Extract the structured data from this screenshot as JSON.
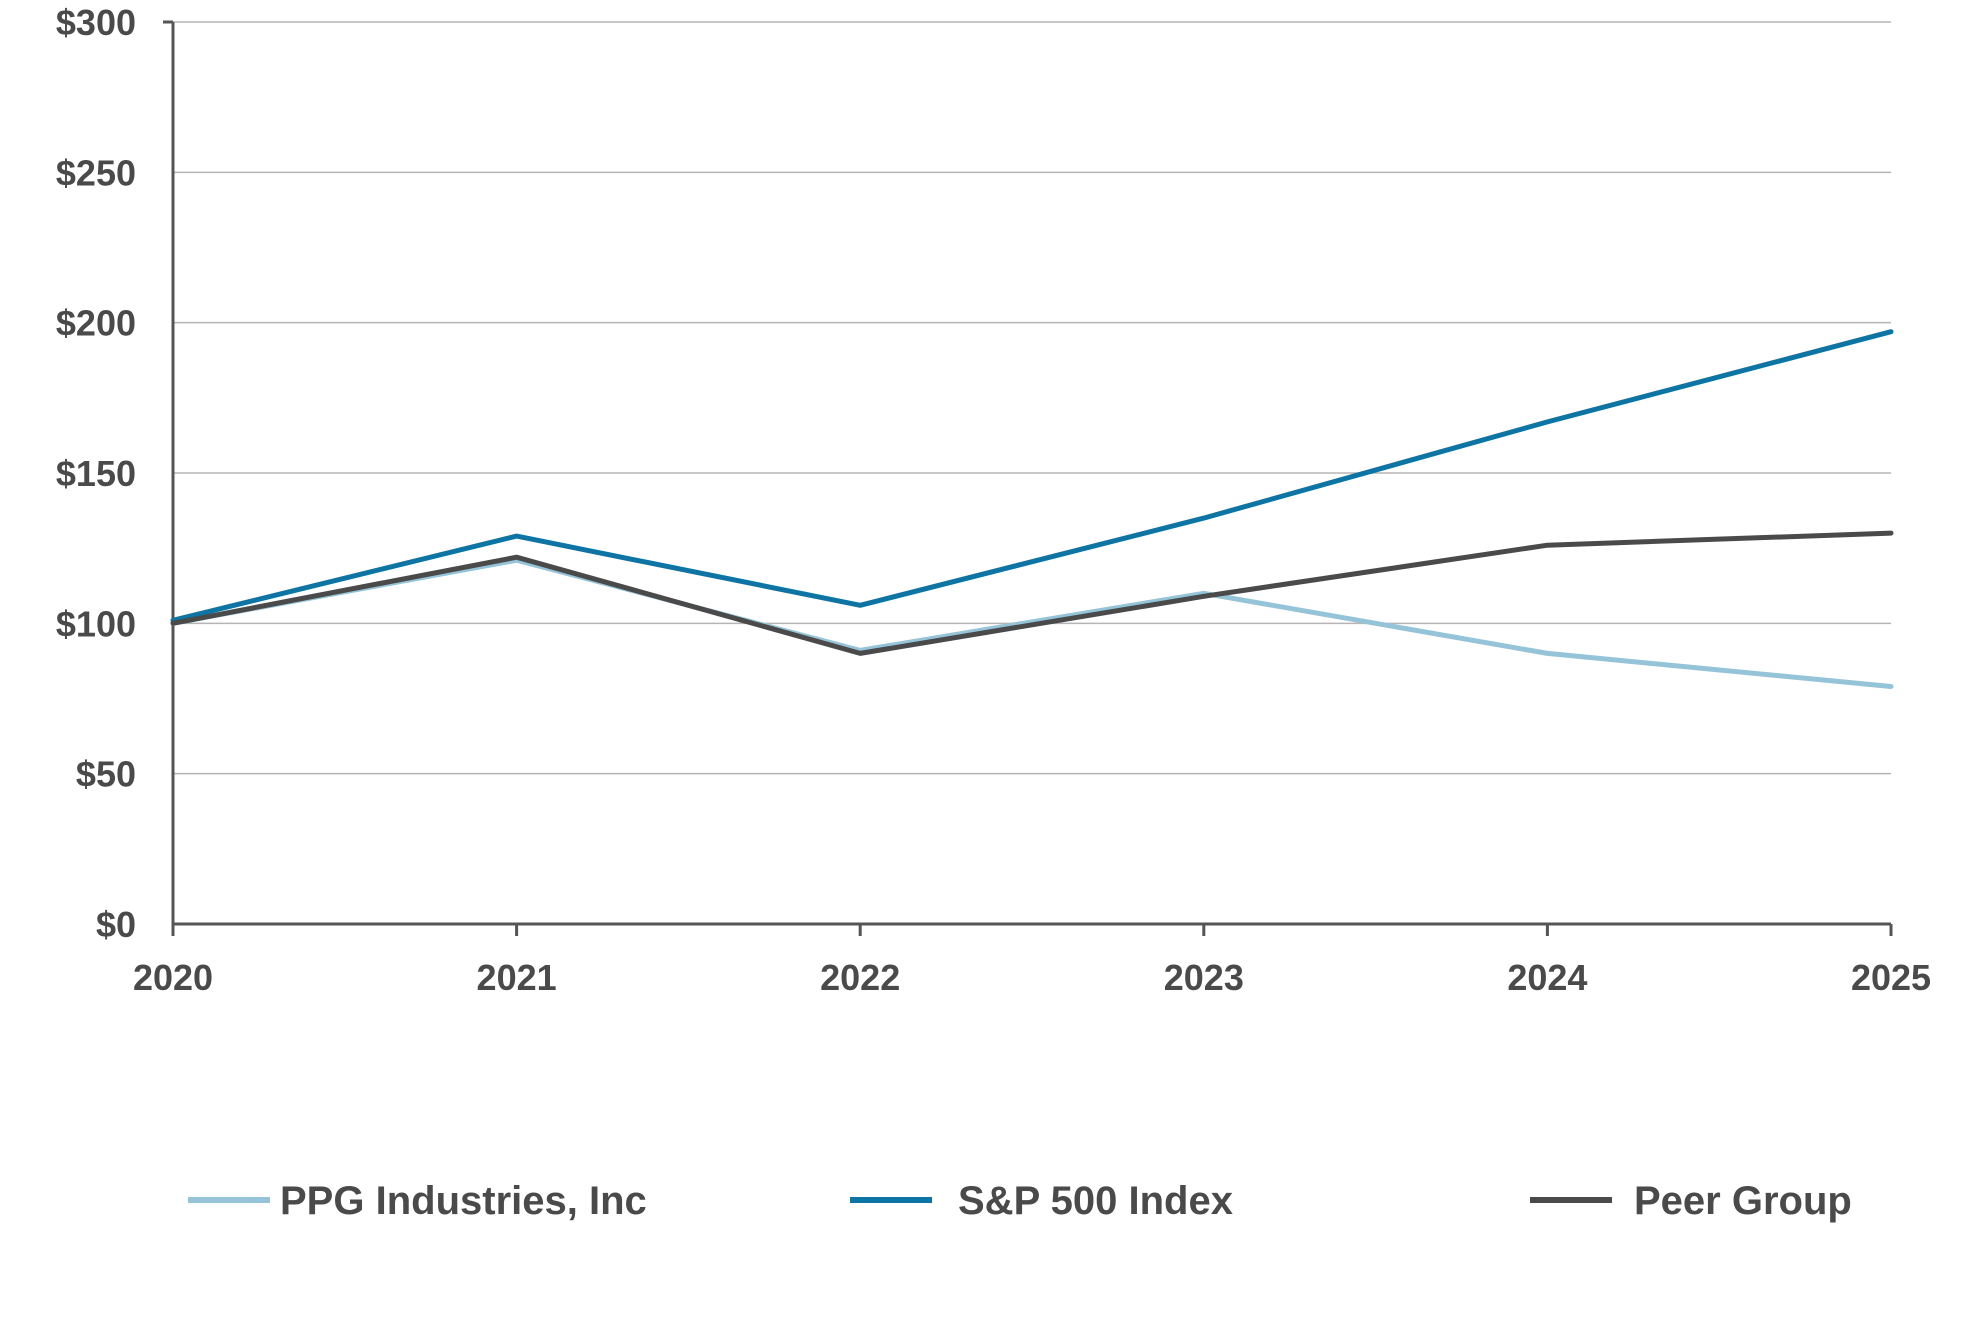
{
  "chart_data": {
    "type": "line",
    "title": "",
    "xlabel": "",
    "ylabel": "",
    "categories": [
      "2020",
      "2021",
      "2022",
      "2023",
      "2024",
      "2025"
    ],
    "ylim": [
      0,
      300
    ],
    "yticks": [
      0,
      50,
      100,
      150,
      200,
      250,
      300
    ],
    "ytick_labels": [
      "$0",
      "$50",
      "$100",
      "$150",
      "$200",
      "$250",
      "$300"
    ],
    "grid": "horizontal",
    "legend_position": "bottom",
    "series": [
      {
        "name": "PPG Industries, Inc",
        "color": "#95c4d9",
        "values": [
          100,
          121,
          91,
          110,
          90,
          79
        ]
      },
      {
        "name": "S&P 500 Index",
        "color": "#0d74a3",
        "values": [
          101,
          129,
          106,
          135,
          167,
          197
        ]
      },
      {
        "name": "Peer Group",
        "color": "#4a4a4a",
        "values": [
          100,
          122,
          90,
          109,
          126,
          130
        ]
      }
    ]
  }
}
